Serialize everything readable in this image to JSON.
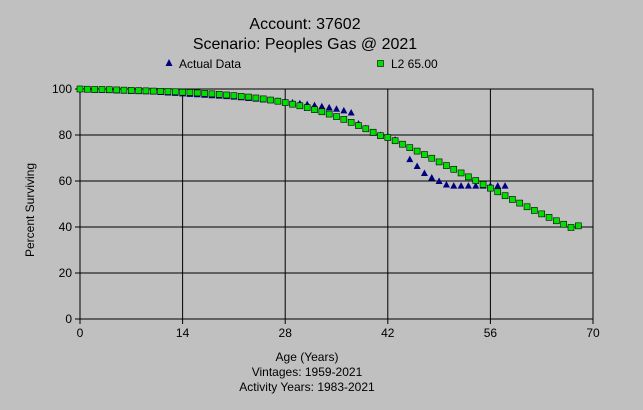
{
  "chart_data": {
    "type": "scatter",
    "title": "Account: 37602",
    "subtitle": "Scenario: Peoples Gas @ 2021",
    "xlabel": "Age (Years)",
    "ylabel": "Percent Surviving",
    "footnotes": [
      "Vintages: 1959-2021",
      "Activity Years: 1983-2021"
    ],
    "xlim": [
      0,
      70
    ],
    "ylim": [
      0,
      100
    ],
    "xticks": [
      0,
      14,
      28,
      42,
      56,
      70
    ],
    "yticks": [
      0,
      20,
      40,
      60,
      80,
      100
    ],
    "grid": true,
    "legend_position": "top",
    "series": [
      {
        "name": "Actual Data",
        "marker": "triangle",
        "color": "#000080",
        "x": [
          0,
          1,
          2,
          3,
          4,
          5,
          6,
          7,
          8,
          9,
          10,
          11,
          12,
          13,
          14,
          15,
          16,
          17,
          18,
          19,
          20,
          21,
          22,
          23,
          24,
          25,
          26,
          27,
          28,
          29,
          30,
          31,
          32,
          33,
          34,
          35,
          36,
          37,
          38,
          39,
          40,
          41,
          42,
          43,
          44,
          45,
          46,
          47,
          48,
          49,
          50,
          51,
          52,
          53,
          54,
          55,
          56,
          57,
          58
        ],
        "y": [
          100,
          99.8,
          99.7,
          99.6,
          99.5,
          99.4,
          99.3,
          99.2,
          99.1,
          99,
          98.9,
          98.7,
          98.5,
          98.3,
          98.1,
          97.9,
          97.7,
          97.5,
          97.3,
          97.1,
          96.9,
          96.7,
          96.4,
          96.1,
          95.8,
          95.5,
          95.2,
          94.9,
          94.6,
          94.2,
          93.8,
          93.4,
          93,
          92.5,
          92,
          91.4,
          90.7,
          89.8,
          85,
          83,
          81,
          80,
          79.5,
          78,
          76,
          69.5,
          66.5,
          63.5,
          61.5,
          60,
          58.5,
          58,
          58,
          58,
          58,
          58,
          58,
          58,
          58
        ]
      },
      {
        "name": "L2 65.00",
        "marker": "square",
        "color": "#00e000",
        "x": [
          0,
          1,
          2,
          3,
          4,
          5,
          6,
          7,
          8,
          9,
          10,
          11,
          12,
          13,
          14,
          15,
          16,
          17,
          18,
          19,
          20,
          21,
          22,
          23,
          24,
          25,
          26,
          27,
          28,
          29,
          30,
          31,
          32,
          33,
          34,
          35,
          36,
          37,
          38,
          39,
          40,
          41,
          42,
          43,
          44,
          45,
          46,
          47,
          48,
          49,
          50,
          51,
          52,
          53,
          54,
          55,
          56,
          57,
          58,
          59,
          60,
          61,
          62,
          63,
          64,
          65,
          66,
          67,
          68
        ],
        "y": [
          100,
          99.9,
          99.8,
          99.8,
          99.7,
          99.6,
          99.5,
          99.4,
          99.3,
          99.2,
          99.1,
          99,
          98.9,
          98.8,
          98.6,
          98.5,
          98.3,
          98.1,
          97.9,
          97.7,
          97.4,
          97.1,
          96.8,
          96.5,
          96.1,
          95.7,
          95.2,
          94.7,
          94.1,
          93.4,
          92.7,
          91.9,
          91,
          90.1,
          89.1,
          88,
          86.8,
          85.5,
          84.1,
          82.7,
          81.2,
          79.7,
          78.9,
          77.5,
          76,
          74.5,
          73,
          71.5,
          69.9,
          68.3,
          66.7,
          65.1,
          63.5,
          61.8,
          60.2,
          58.5,
          56.9,
          55.3,
          53.6,
          52,
          50.4,
          48.8,
          47.2,
          45.7,
          44.2,
          42.7,
          41.2,
          39.8,
          40.5
        ]
      }
    ]
  }
}
